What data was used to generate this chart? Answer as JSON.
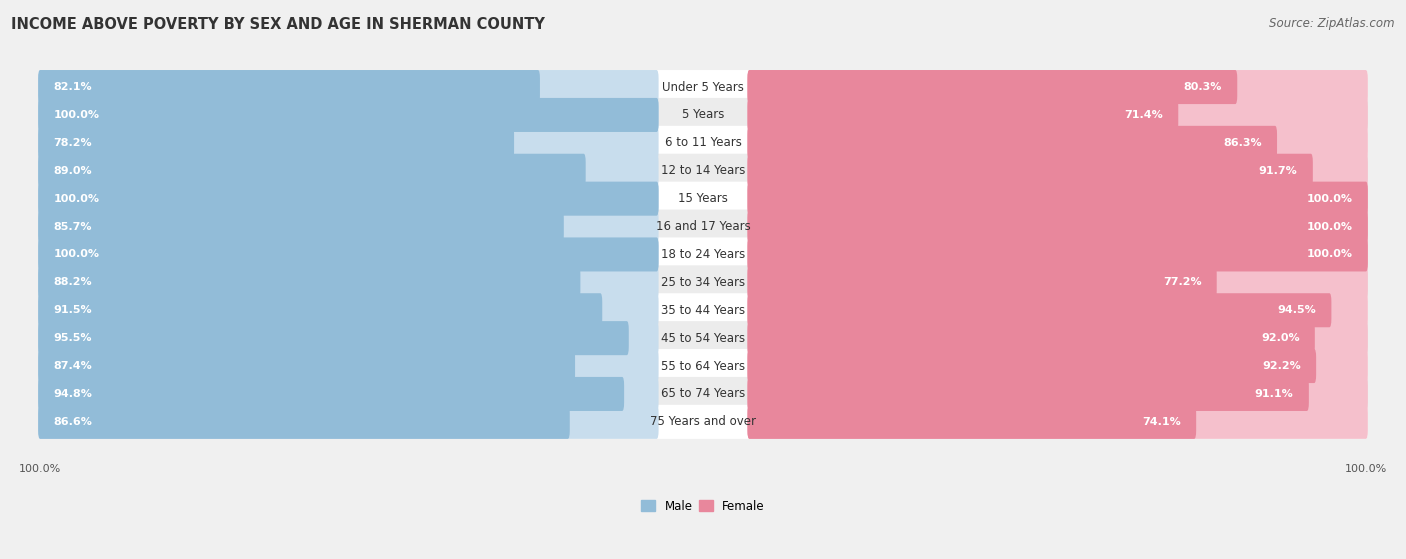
{
  "title": "INCOME ABOVE POVERTY BY SEX AND AGE IN SHERMAN COUNTY",
  "source": "Source: ZipAtlas.com",
  "categories": [
    "Under 5 Years",
    "5 Years",
    "6 to 11 Years",
    "12 to 14 Years",
    "15 Years",
    "16 and 17 Years",
    "18 to 24 Years",
    "25 to 34 Years",
    "35 to 44 Years",
    "45 to 54 Years",
    "55 to 64 Years",
    "65 to 74 Years",
    "75 Years and over"
  ],
  "male_values": [
    82.1,
    100.0,
    78.2,
    89.0,
    100.0,
    85.7,
    100.0,
    88.2,
    91.5,
    95.5,
    87.4,
    94.8,
    86.6
  ],
  "female_values": [
    80.3,
    71.4,
    86.3,
    91.7,
    100.0,
    100.0,
    100.0,
    77.2,
    94.5,
    92.0,
    92.2,
    91.1,
    74.1
  ],
  "male_color": "#92bcd8",
  "female_color": "#e8879c",
  "male_light": "#c8dded",
  "female_light": "#f5c0cc",
  "male_label": "Male",
  "female_label": "Female",
  "background_color": "#f0f0f0",
  "track_color": "#e0e0e0",
  "row_bg_odd": "#ffffff",
  "row_bg_even": "#ececec",
  "max_value": 100.0,
  "title_fontsize": 10.5,
  "label_fontsize": 8.5,
  "value_fontsize": 8.0,
  "source_fontsize": 8.5,
  "axis_label_fontsize": 8.0
}
